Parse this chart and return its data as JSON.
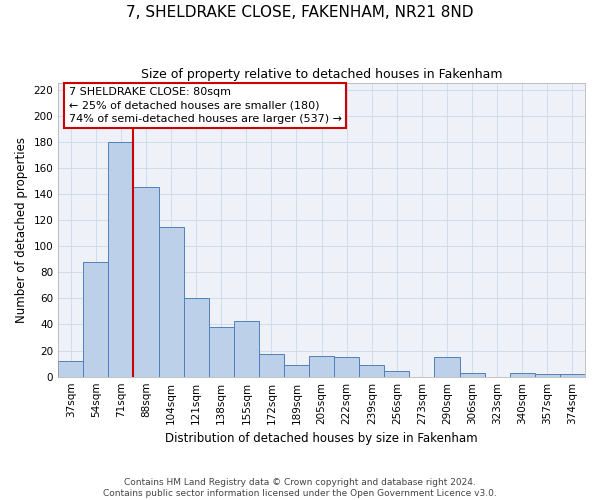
{
  "title": "7, SHELDRAKE CLOSE, FAKENHAM, NR21 8ND",
  "subtitle": "Size of property relative to detached houses in Fakenham",
  "xlabel": "Distribution of detached houses by size in Fakenham",
  "ylabel": "Number of detached properties",
  "categories": [
    "37sqm",
    "54sqm",
    "71sqm",
    "88sqm",
    "104sqm",
    "121sqm",
    "138sqm",
    "155sqm",
    "172sqm",
    "189sqm",
    "205sqm",
    "222sqm",
    "239sqm",
    "256sqm",
    "273sqm",
    "290sqm",
    "306sqm",
    "323sqm",
    "340sqm",
    "357sqm",
    "374sqm"
  ],
  "bar_heights": [
    12,
    88,
    180,
    145,
    115,
    60,
    38,
    43,
    17,
    9,
    16,
    15,
    9,
    4,
    0,
    15,
    3,
    0,
    3,
    2,
    2
  ],
  "bar_color": "#bdd0e9",
  "bar_edge_color": "#5080b8",
  "bar_width": 1.0,
  "vline_x": 2.5,
  "vline_color": "#cc0000",
  "ylim": [
    0,
    225
  ],
  "yticks": [
    0,
    20,
    40,
    60,
    80,
    100,
    120,
    140,
    160,
    180,
    200,
    220
  ],
  "annotation_line1": "7 SHELDRAKE CLOSE: 80sqm",
  "annotation_line2": "← 25% of detached houses are smaller (180)",
  "annotation_line3": "74% of semi-detached houses are larger (537) →",
  "grid_color": "#c8d8ea",
  "grid_color_x": "#c8d8ea",
  "background_color": "#eef2f8",
  "footer_text": "Contains HM Land Registry data © Crown copyright and database right 2024.\nContains public sector information licensed under the Open Government Licence v3.0.",
  "title_fontsize": 11,
  "subtitle_fontsize": 9,
  "axis_label_fontsize": 8.5,
  "tick_fontsize": 7.5,
  "footer_fontsize": 6.5,
  "annotation_fontsize": 8
}
